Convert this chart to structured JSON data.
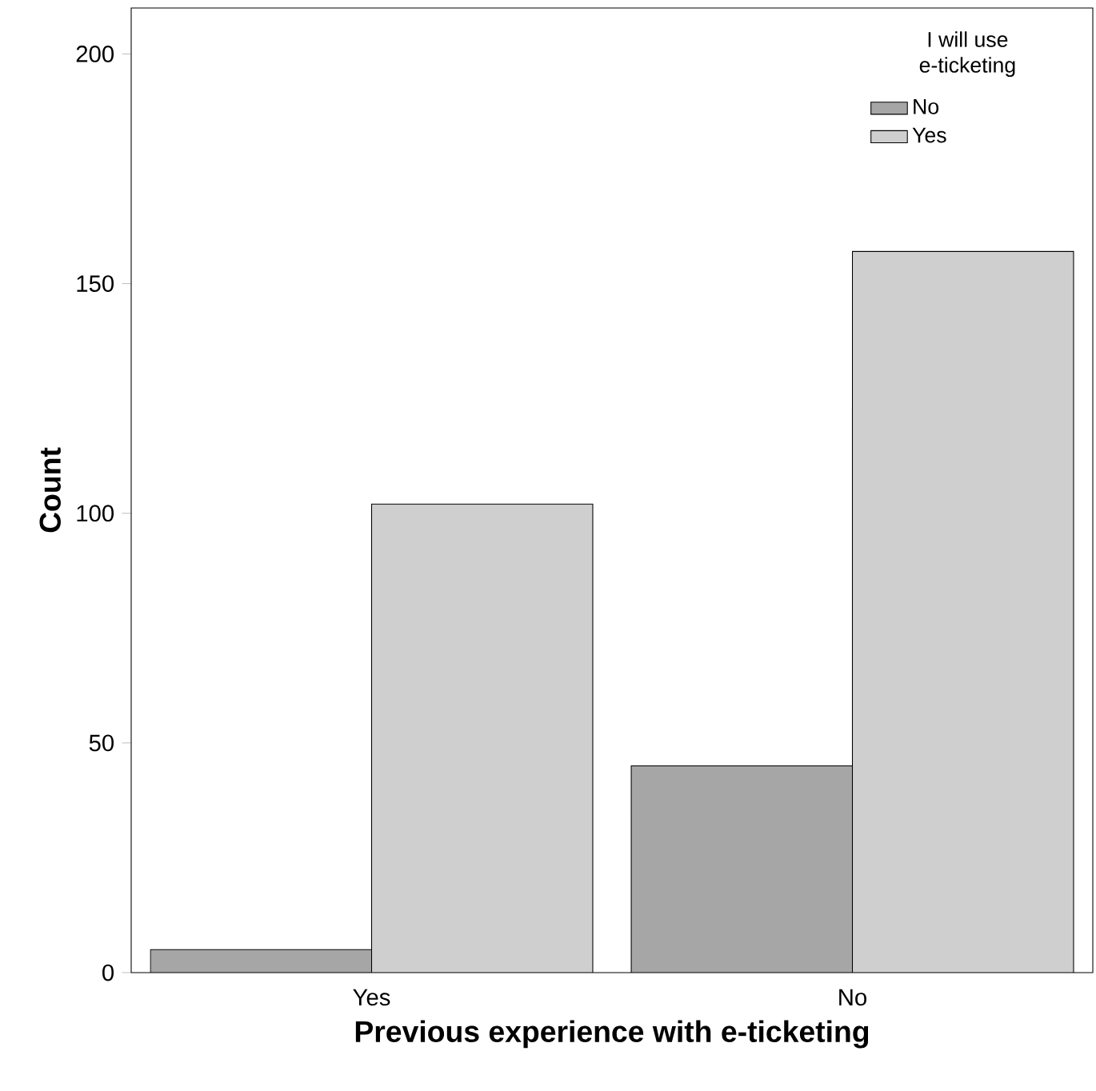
{
  "chart_data": {
    "type": "bar",
    "xlabel": "Previous experience with e-ticketing",
    "ylabel": "Count",
    "legend_title": "I will use e-ticketing",
    "categories": [
      "Yes",
      "No"
    ],
    "series": [
      {
        "name": "No",
        "color": "#a6a6a6",
        "values": [
          5,
          45
        ]
      },
      {
        "name": "Yes",
        "color": "#cfcfcf",
        "values": [
          102,
          157
        ]
      }
    ],
    "ylim": [
      0,
      210
    ],
    "yticks": [
      0,
      50,
      100,
      150,
      200
    ],
    "grid": false,
    "legend": "top right"
  }
}
